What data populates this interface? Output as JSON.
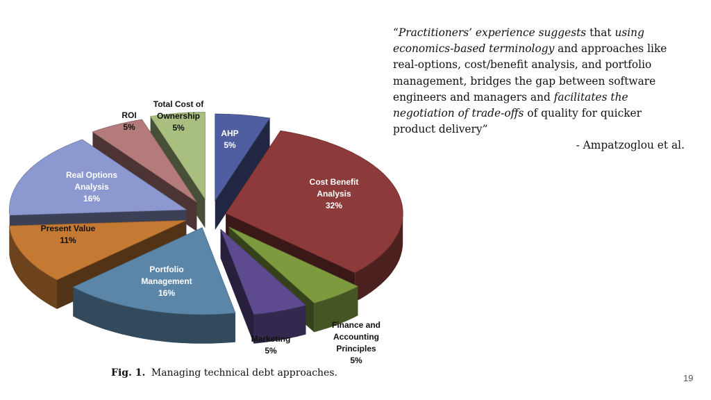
{
  "chart_data": {
    "type": "pie",
    "title": "",
    "slices": [
      {
        "label": [
          "AHP",
          "5%"
        ],
        "value": 5,
        "color": "#4e5ea0"
      },
      {
        "label": [
          "Cost Benefit",
          "Analysis",
          "32%"
        ],
        "value": 32,
        "color": "#8c3a3a"
      },
      {
        "label": [
          "Finance and",
          "Accounting",
          "Principles",
          "5%"
        ],
        "value": 5,
        "color": "#7d9a3f"
      },
      {
        "label": [
          "Marketing",
          "5%"
        ],
        "value": 5,
        "color": "#5d4a8f"
      },
      {
        "label": [
          "Portfolio",
          "Management",
          "16%"
        ],
        "value": 16,
        "color": "#5b86a8"
      },
      {
        "label": [
          "Present Value",
          "11%"
        ],
        "value": 11,
        "color": "#c47a32"
      },
      {
        "label": [
          "Real Options",
          "Analysis",
          "16%"
        ],
        "value": 16,
        "color": "#8c98d0"
      },
      {
        "label": [
          "ROI",
          "5%"
        ],
        "value": 5,
        "color": "#b57b7b"
      },
      {
        "label": [
          "Total Cost of",
          "Ownership",
          "5%"
        ],
        "value": 5,
        "color": "#a8bf80"
      }
    ]
  },
  "caption": {
    "fig": "Fig. 1.",
    "text": "Managing technical debt approaches."
  },
  "quote": {
    "parts": [
      {
        "t": "“",
        "i": false
      },
      {
        "t": "Practitioners’ experience suggests",
        "i": true
      },
      {
        "t": " that ",
        "i": false
      },
      {
        "t": "using economics-based terminology",
        "i": true
      },
      {
        "t": " and approaches like real-options, cost/benefit analysis, and portfolio management, bridges the gap between software engineers and managers and ",
        "i": false
      },
      {
        "t": "facilitates the negotiation of trade-offs",
        "i": true
      },
      {
        "t": " of quality for quicker product delivery”",
        "i": false
      }
    ],
    "attribution": "- Ampatzoglou et al."
  },
  "page_number": "19"
}
